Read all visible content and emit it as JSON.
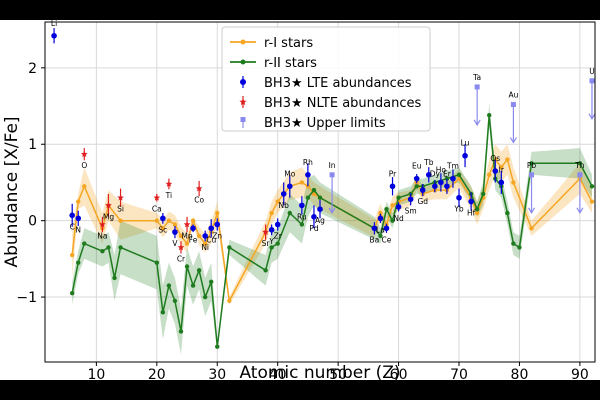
{
  "chart_data": {
    "type": "line",
    "xlabel": "Atomic number (Z)",
    "ylabel": "Abundance [X/Fe]",
    "xlim": [
      1.5,
      92.5
    ],
    "ylim": [
      -1.85,
      2.6
    ],
    "xticks": [
      10,
      20,
      30,
      40,
      50,
      60,
      70,
      80,
      90
    ],
    "yticks": [
      -1,
      0,
      1,
      2
    ],
    "grid": true,
    "legend_position": "top-center",
    "legend": [
      {
        "label": "r-I stars",
        "color": "#f5a623",
        "kind": "line"
      },
      {
        "label": "r-II stars",
        "color": "#1e7b1e",
        "kind": "line"
      },
      {
        "label": "BH3★ LTE abundances",
        "color": "#0000dd",
        "kind": "point"
      },
      {
        "label": "BH3★ NLTE abundances",
        "color": "#e02020",
        "kind": "star"
      },
      {
        "label": "BH3★ Upper limits",
        "color": "#8a8aee",
        "kind": "limit"
      }
    ],
    "series": [
      {
        "name": "r-I stars",
        "color": "#f5a623",
        "x": [
          6,
          7,
          8,
          11,
          12,
          14,
          20,
          21,
          22,
          23,
          24,
          25,
          26,
          27,
          28,
          29,
          30,
          32,
          38,
          39,
          40,
          42,
          44,
          45,
          46,
          47,
          56,
          57,
          58,
          59,
          60,
          62,
          63,
          64,
          66,
          68,
          70,
          72,
          73,
          74,
          75,
          76,
          77,
          78,
          79,
          82,
          90,
          92
        ],
        "y": [
          -0.45,
          0.25,
          0.45,
          -0.1,
          0.2,
          0.0,
          0.0,
          -0.1,
          0.0,
          -0.05,
          -0.2,
          -0.3,
          0.0,
          -0.2,
          -0.3,
          -0.15,
          0.1,
          -1.05,
          -0.15,
          0.1,
          0.25,
          0.45,
          0.5,
          0.45,
          0.35,
          0.3,
          -0.1,
          0.1,
          -0.05,
          0.2,
          0.25,
          0.3,
          0.5,
          0.35,
          0.4,
          0.4,
          0.55,
          0.3,
          0.1,
          0.3,
          0.6,
          0.8,
          0.7,
          0.8,
          0.5,
          -0.1,
          0.55,
          0.25
        ],
        "band": [
          0.3,
          0.1,
          0.25,
          0.2,
          0.2,
          0.25,
          0.1,
          0.12,
          0.12,
          0.12,
          0.12,
          0.12,
          0.05,
          0.12,
          0.12,
          0.15,
          0.15,
          0.05,
          0.15,
          0.15,
          0.15,
          0.18,
          0.2,
          0.15,
          0.15,
          0.15,
          0.12,
          0.12,
          0.1,
          0.12,
          0.12,
          0.1,
          0.1,
          0.1,
          0.12,
          0.12,
          0.12,
          0.15,
          0.15,
          0.15,
          0.2,
          0.2,
          0.2,
          0.2,
          0.2,
          0.1,
          0.2,
          0.15
        ]
      },
      {
        "name": "r-II stars",
        "color": "#1e7b1e",
        "x": [
          6,
          7,
          8,
          11,
          12,
          13,
          14,
          20,
          21,
          22,
          23,
          24,
          25,
          26,
          27,
          28,
          29,
          30,
          32,
          38,
          39,
          40,
          42,
          44,
          45,
          46,
          47,
          56,
          57,
          58,
          59,
          60,
          62,
          63,
          64,
          66,
          68,
          70,
          72,
          73,
          74,
          75,
          76,
          77,
          78,
          79,
          80,
          82,
          90,
          92
        ],
        "y": [
          -0.95,
          -0.55,
          -0.3,
          -0.4,
          -0.35,
          -0.75,
          -0.35,
          -0.55,
          -1.2,
          -0.85,
          -1.05,
          -1.45,
          -0.6,
          -0.85,
          -0.65,
          -1.0,
          -0.8,
          -1.65,
          -0.35,
          -0.65,
          -0.35,
          -0.3,
          0.1,
          -0.05,
          0.3,
          0.4,
          0.3,
          -0.1,
          -0.2,
          0.15,
          0.0,
          0.3,
          0.35,
          0.45,
          0.45,
          0.5,
          0.55,
          0.6,
          0.35,
          0.15,
          0.35,
          1.38,
          0.55,
          0.45,
          0.1,
          -0.3,
          -0.35,
          0.75,
          0.75,
          0.45
        ],
        "band": [
          0.15,
          0.15,
          0.2,
          0.2,
          0.2,
          0.3,
          0.35,
          0.35,
          0.35,
          0.3,
          0.3,
          0.3,
          0.25,
          0.25,
          0.25,
          0.25,
          0.25,
          0.05,
          0.1,
          0.2,
          0.2,
          0.2,
          0.25,
          0.25,
          0.25,
          0.2,
          0.2,
          0.15,
          0.1,
          0.1,
          0.1,
          0.1,
          0.1,
          0.1,
          0.1,
          0.1,
          0.1,
          0.1,
          0.1,
          0.1,
          0.15,
          0.15,
          0.15,
          0.15,
          0.15,
          0.15,
          0.15,
          0.15,
          0.2,
          0.15
        ]
      }
    ],
    "lte": [
      {
        "el": "Li",
        "x": 3,
        "y": 2.42,
        "err": 0.1
      },
      {
        "el": "C",
        "x": 6,
        "y": 0.07,
        "err": 0.15
      },
      {
        "el": "N",
        "x": 7,
        "y": 0.03,
        "err": 0.1
      },
      {
        "el": "Sc",
        "x": 21,
        "y": 0.03,
        "err": 0.07
      },
      {
        "el": "V",
        "x": 23,
        "y": -0.15,
        "err": 0.08
      },
      {
        "el": "Fe",
        "x": 26,
        "y": -0.1,
        "err": 0.05
      },
      {
        "el": "Ni",
        "x": 28,
        "y": -0.2,
        "err": 0.07
      },
      {
        "el": "Cu",
        "x": 29,
        "y": -0.1,
        "err": 0.12
      },
      {
        "el": "Zn",
        "x": 30,
        "y": -0.05,
        "err": 0.08
      },
      {
        "el": "Y",
        "x": 39,
        "y": -0.12,
        "err": 0.07
      },
      {
        "el": "Zr",
        "x": 40,
        "y": -0.05,
        "err": 0.08
      },
      {
        "el": "Nb",
        "x": 41,
        "y": 0.35,
        "err": 0.15
      },
      {
        "el": "Mo",
        "x": 42,
        "y": 0.45,
        "err": 0.15
      },
      {
        "el": "Ru",
        "x": 44,
        "y": 0.2,
        "err": 0.12
      },
      {
        "el": "Rh",
        "x": 45,
        "y": 0.6,
        "err": 0.15
      },
      {
        "el": "Pd",
        "x": 46,
        "y": 0.05,
        "err": 0.15
      },
      {
        "el": "Ag",
        "x": 47,
        "y": 0.15,
        "err": 0.12
      },
      {
        "el": "Ba",
        "x": 56,
        "y": -0.1,
        "err": 0.08
      },
      {
        "el": "La",
        "x": 57,
        "y": 0.03,
        "err": 0.06
      },
      {
        "el": "Ce",
        "x": 58,
        "y": -0.1,
        "err": 0.06
      },
      {
        "el": "Pr",
        "x": 59,
        "y": 0.45,
        "err": 0.12
      },
      {
        "el": "Nd",
        "x": 60,
        "y": 0.18,
        "err": 0.06
      },
      {
        "el": "Sm",
        "x": 62,
        "y": 0.28,
        "err": 0.08
      },
      {
        "el": "Eu",
        "x": 63,
        "y": 0.55,
        "err": 0.06
      },
      {
        "el": "Gd",
        "x": 64,
        "y": 0.4,
        "err": 0.08
      },
      {
        "el": "Tb",
        "x": 65,
        "y": 0.6,
        "err": 0.1
      },
      {
        "el": "Dy",
        "x": 66,
        "y": 0.45,
        "err": 0.08
      },
      {
        "el": "Ho",
        "x": 67,
        "y": 0.5,
        "err": 0.12
      },
      {
        "el": "Er",
        "x": 68,
        "y": 0.45,
        "err": 0.1
      },
      {
        "el": "Tm",
        "x": 69,
        "y": 0.55,
        "err": 0.12
      },
      {
        "el": "Yb",
        "x": 70,
        "y": 0.3,
        "err": 0.12
      },
      {
        "el": "Lu",
        "x": 71,
        "y": 0.85,
        "err": 0.15
      },
      {
        "el": "Hf",
        "x": 72,
        "y": 0.25,
        "err": 0.12
      },
      {
        "el": "Os",
        "x": 76,
        "y": 0.65,
        "err": 0.15
      },
      {
        "el": "Ir",
        "x": 77,
        "y": 0.5,
        "err": 0.15
      }
    ],
    "nlte": [
      {
        "el": "O",
        "x": 8,
        "y": 0.87,
        "err": 0.08
      },
      {
        "el": "Na",
        "x": 11,
        "y": -0.05,
        "err": 0.1
      },
      {
        "el": "Mg",
        "x": 12,
        "y": 0.2,
        "err": 0.15
      },
      {
        "el": "Si",
        "x": 14,
        "y": 0.3,
        "err": 0.12
      },
      {
        "el": "Ca",
        "x": 20,
        "y": 0.3,
        "err": 0.05
      },
      {
        "el": "Ti",
        "x": 22,
        "y": 0.48,
        "err": 0.07
      },
      {
        "el": "Cr",
        "x": 24,
        "y": -0.35,
        "err": 0.08
      },
      {
        "el": "Mn",
        "x": 25,
        "y": -0.05,
        "err": 0.1
      },
      {
        "el": "Co",
        "x": 27,
        "y": 0.42,
        "err": 0.1
      },
      {
        "el": "Sr",
        "x": 38,
        "y": -0.15,
        "err": 0.1
      }
    ],
    "upper": [
      {
        "el": "In",
        "x": 49,
        "y": 0.6
      },
      {
        "el": "Ta",
        "x": 73,
        "y": 1.75
      },
      {
        "el": "Au",
        "x": 79,
        "y": 1.52
      },
      {
        "el": "Pb",
        "x": 82,
        "y": 0.6
      },
      {
        "el": "Th",
        "x": 90,
        "y": 0.6
      },
      {
        "el": "U",
        "x": 92,
        "y": 1.83
      }
    ]
  }
}
